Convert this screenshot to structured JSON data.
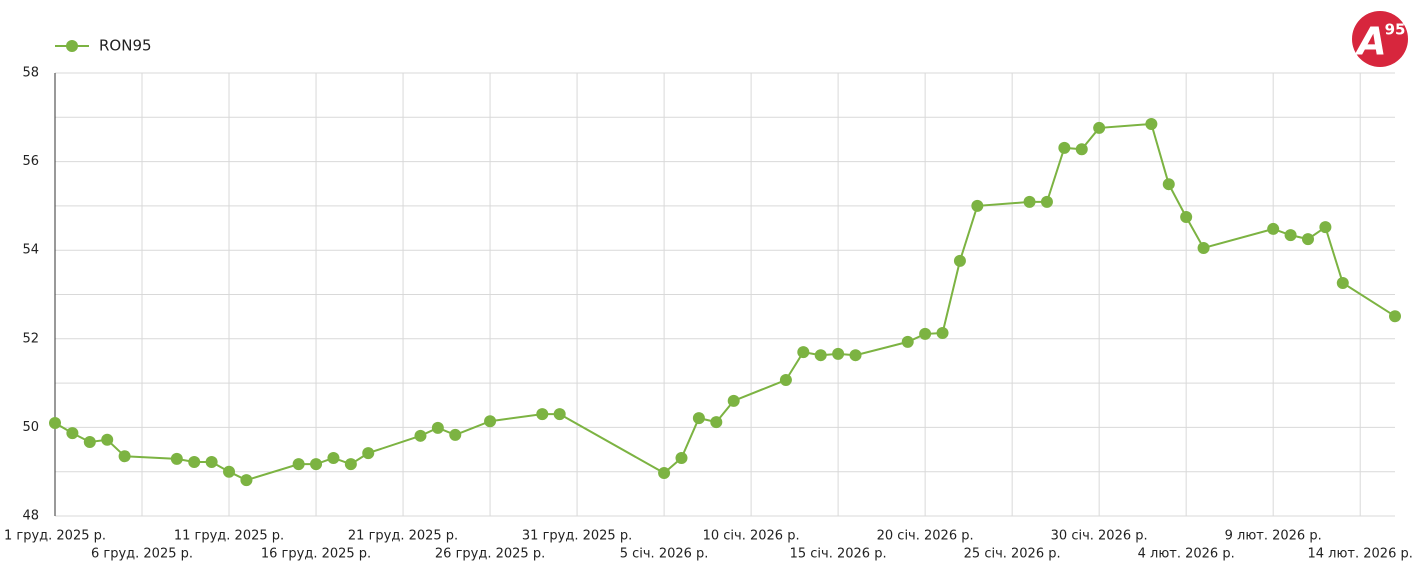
{
  "chart_data": {
    "type": "line",
    "x": [
      "2025-12-01",
      "2025-12-02",
      "2025-12-03",
      "2025-12-04",
      "2025-12-05",
      "2025-12-08",
      "2025-12-09",
      "2025-12-10",
      "2025-12-11",
      "2025-12-12",
      "2025-12-15",
      "2025-12-16",
      "2025-12-17",
      "2025-12-18",
      "2025-12-19",
      "2025-12-22",
      "2025-12-23",
      "2025-12-24",
      "2025-12-26",
      "2025-12-29",
      "2025-12-30",
      "2026-01-05",
      "2026-01-06",
      "2026-01-07",
      "2026-01-08",
      "2026-01-09",
      "2026-01-12",
      "2026-01-13",
      "2026-01-14",
      "2026-01-15",
      "2026-01-16",
      "2026-01-19",
      "2026-01-20",
      "2026-01-21",
      "2026-01-22",
      "2026-01-23",
      "2026-01-26",
      "2026-01-27",
      "2026-01-28",
      "2026-01-29",
      "2026-01-30",
      "2026-02-02",
      "2026-02-03",
      "2026-02-04",
      "2026-02-05",
      "2026-02-09",
      "2026-02-10",
      "2026-02-11",
      "2026-02-12",
      "2026-02-13",
      "2026-02-16"
    ],
    "series": [
      {
        "name": "RON95",
        "color": "#7cb342",
        "values": [
          50.1,
          49.87,
          49.67,
          49.72,
          49.35,
          49.29,
          49.22,
          49.22,
          49.0,
          48.81,
          49.17,
          49.17,
          49.31,
          49.17,
          49.42,
          49.81,
          49.99,
          49.83,
          50.14,
          50.3,
          50.3,
          48.97,
          49.31,
          50.21,
          50.12,
          50.6,
          51.07,
          51.7,
          51.63,
          51.66,
          51.63,
          51.93,
          52.11,
          52.13,
          53.76,
          55.0,
          55.09,
          55.09,
          56.31,
          56.28,
          56.76,
          56.85,
          55.49,
          54.75,
          54.05,
          54.48,
          54.34,
          54.25,
          54.52,
          53.26,
          52.51
        ]
      }
    ],
    "xlim": [
      "2025-12-01",
      "2026-02-16"
    ],
    "xticks": [
      {
        "value": "2025-12-01",
        "label": "1 груд. 2025 р."
      },
      {
        "value": "2025-12-06",
        "label": "6 груд. 2025 р."
      },
      {
        "value": "2025-12-11",
        "label": "11 груд. 2025 р."
      },
      {
        "value": "2025-12-16",
        "label": "16 груд. 2025 р."
      },
      {
        "value": "2025-12-21",
        "label": "21 груд. 2025 р."
      },
      {
        "value": "2025-12-26",
        "label": "26 груд. 2025 р."
      },
      {
        "value": "2025-12-31",
        "label": "31 груд. 2025 р."
      },
      {
        "value": "2026-01-05",
        "label": "5 січ. 2026 р."
      },
      {
        "value": "2026-01-10",
        "label": "10 січ. 2026 р."
      },
      {
        "value": "2026-01-15",
        "label": "15 січ. 2026 р."
      },
      {
        "value": "2026-01-20",
        "label": "20 січ. 2026 р."
      },
      {
        "value": "2026-01-25",
        "label": "25 січ. 2026 р."
      },
      {
        "value": "2026-01-30",
        "label": "30 січ. 2026 р."
      },
      {
        "value": "2026-02-04",
        "label": "4 лют. 2026 р."
      },
      {
        "value": "2026-02-09",
        "label": "9 лют. 2026 р."
      },
      {
        "value": "2026-02-14",
        "label": "14 лют. 2026 р."
      }
    ],
    "ylim": [
      48,
      58
    ],
    "yticks": [
      48,
      50,
      52,
      54,
      56,
      58
    ],
    "minor_yticks": [
      49,
      51,
      53,
      55,
      57
    ],
    "grid": true,
    "legend": "top-left"
  },
  "logo": {
    "letter": "A",
    "number": "95"
  }
}
